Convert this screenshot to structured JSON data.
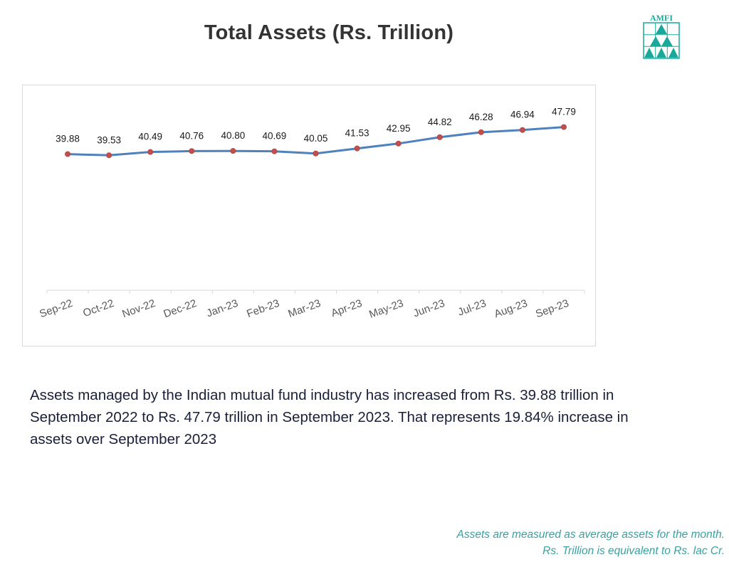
{
  "page": {
    "title": "Total Assets (Rs. Trillion)",
    "logo_text": "AMFI",
    "summary": "Assets managed by the Indian mutual fund industry has increased from Rs. 39.88 trillion in September 2022 to Rs. 47.79 trillion in September 2023. That represents 19.84% increase in assets over September 2023",
    "footnotes": [
      "Assets are measured as average assets for the month.",
      "Rs. Trillion is equivalent to Rs. lac Cr."
    ],
    "colors": {
      "line": "#4f81bd",
      "marker": "#c0504d",
      "footnote": "#3aa0a0",
      "logo": "#1aa89a"
    }
  },
  "chart_data": {
    "type": "line",
    "title": "Total Assets (Rs. Trillion)",
    "xlabel": "",
    "ylabel": "",
    "categories": [
      "Sep-22",
      "Oct-22",
      "Nov-22",
      "Dec-22",
      "Jan-23",
      "Feb-23",
      "Mar-23",
      "Apr-23",
      "May-23",
      "Jun-23",
      "Jul-23",
      "Aug-23",
      "Sep-23"
    ],
    "series": [
      {
        "values": [
          39.88,
          39.53,
          40.49,
          40.76,
          40.8,
          40.69,
          40.05,
          41.53,
          42.95,
          44.82,
          46.28,
          46.94,
          47.79
        ]
      }
    ],
    "data_labels": [
      "39.88",
      "39.53",
      "40.49",
      "40.76",
      "40.80",
      "40.69",
      "40.05",
      "41.53",
      "42.95",
      "44.82",
      "46.28",
      "46.94",
      "47.79"
    ],
    "ylim": [
      0,
      60
    ],
    "y_axis_visible": false,
    "grid": false,
    "legend": "none"
  }
}
